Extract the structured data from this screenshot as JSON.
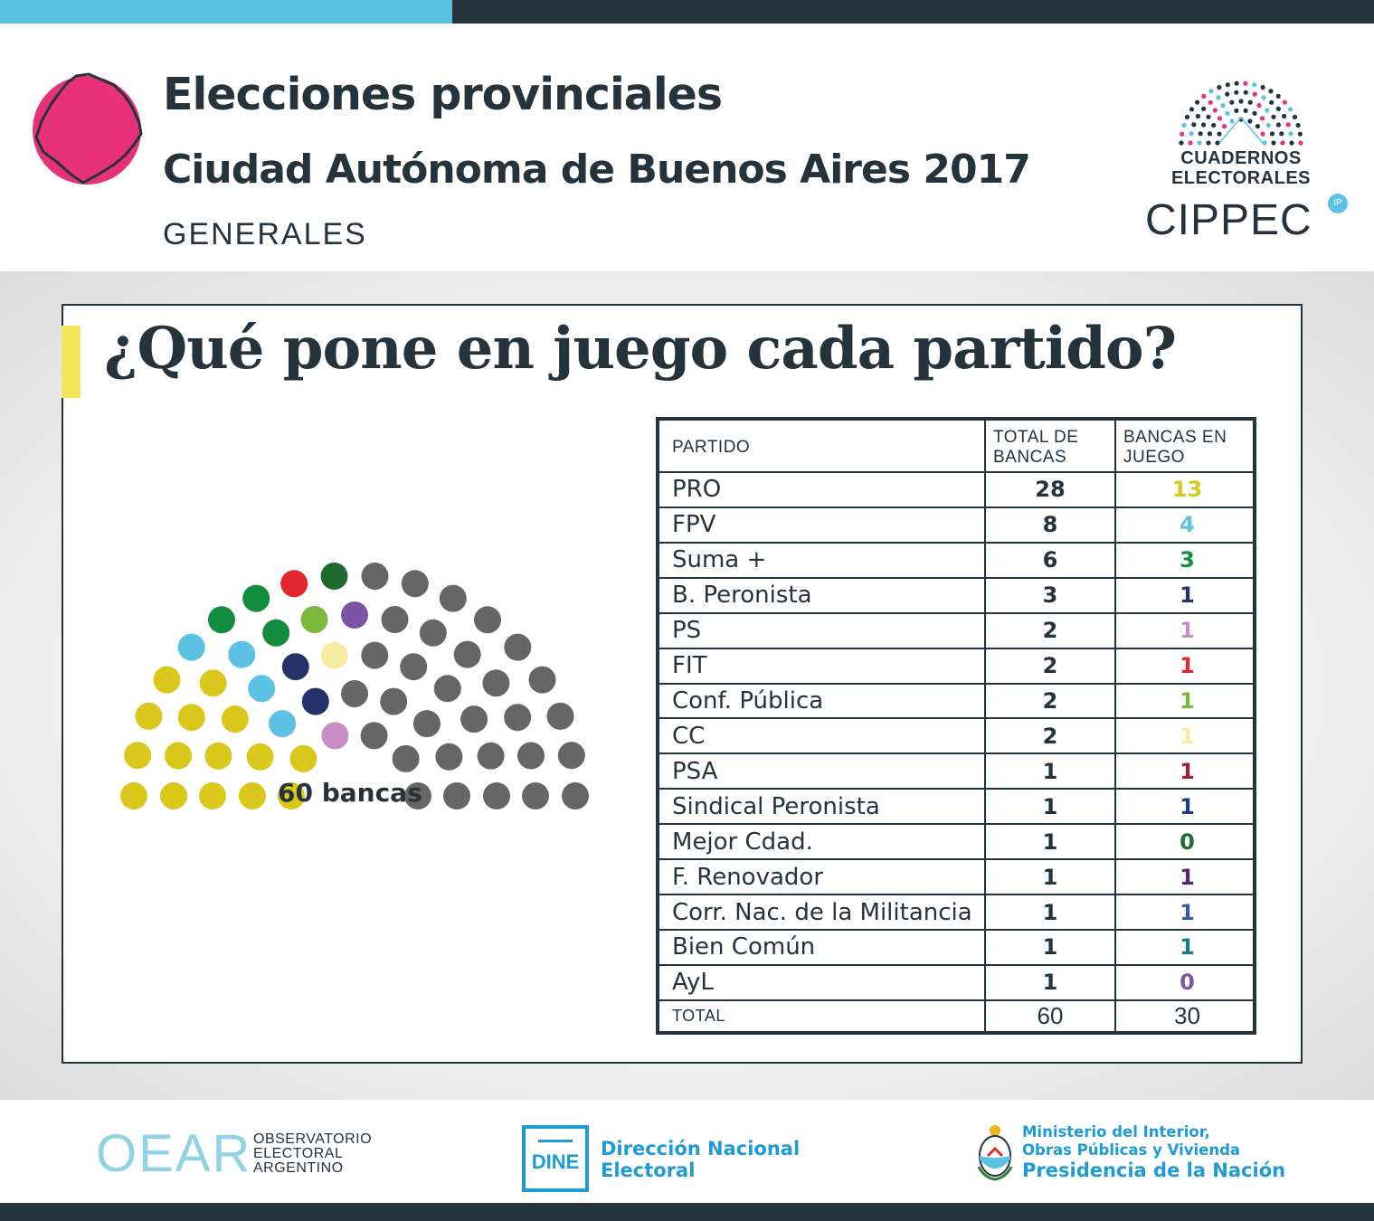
{
  "colors": {
    "accent_blue": "#5cc2e3",
    "dark": "#25333d",
    "magenta": "#e8317a",
    "highlight_yellow": "#f3e55a",
    "institution_blue": "#1e9bd7"
  },
  "header": {
    "title": "Elecciones provinciales",
    "region": "Ciudad Autónoma de Buenos Aires 2017",
    "subtitle": "GENERALES",
    "map_icon": "buenos-aires-city-map-icon"
  },
  "logo": {
    "line1": "CUADERNOS",
    "line2": "ELECTORALES",
    "name": "CIPPEC",
    "badge": "IP"
  },
  "main": {
    "question": "¿Qué pone en juego cada partido?",
    "bancas_label": "60 bancas"
  },
  "table": {
    "headers": {
      "partido": "PARTIDO",
      "total": "TOTAL DE BANCAS",
      "juego": "BANCAS EN JUEGO"
    },
    "total_label": "TOTAL",
    "total_bancas": "60",
    "total_juego": "30"
  },
  "chart_data": {
    "type": "table",
    "title": "¿Qué pone en juego cada partido?",
    "columns": [
      "PARTIDO",
      "TOTAL DE BANCAS",
      "BANCAS EN JUEGO"
    ],
    "total_seats": 60,
    "parties": [
      {
        "name": "PRO",
        "total": 28,
        "juego": 13,
        "color": "#d9c71c"
      },
      {
        "name": "FPV",
        "total": 8,
        "juego": 4,
        "color": "#5cc2e3"
      },
      {
        "name": "Suma +",
        "total": 6,
        "juego": 3,
        "color": "#128c3e"
      },
      {
        "name": "B. Peronista",
        "total": 3,
        "juego": 1,
        "color": "#26336b"
      },
      {
        "name": "PS",
        "total": 2,
        "juego": 1,
        "color": "#c98cc4"
      },
      {
        "name": "FIT",
        "total": 2,
        "juego": 1,
        "color": "#e3262c"
      },
      {
        "name": "Conf. Pública",
        "total": 2,
        "juego": 1,
        "color": "#7cb83b"
      },
      {
        "name": "CC",
        "total": 2,
        "juego": 1,
        "color": "#f5eca1"
      },
      {
        "name": "PSA",
        "total": 1,
        "juego": 1,
        "color": "#a61e36"
      },
      {
        "name": "Sindical Peronista",
        "total": 1,
        "juego": 1,
        "color": "#1b3c8c"
      },
      {
        "name": "Mejor Cdad.",
        "total": 1,
        "juego": 0,
        "color": "#1f6a2e"
      },
      {
        "name": "F. Renovador",
        "total": 1,
        "juego": 1,
        "color": "#5a2270"
      },
      {
        "name": "Corr. Nac. de la Militancia",
        "total": 1,
        "juego": 1,
        "color": "#3559a8"
      },
      {
        "name": "Bien Común",
        "total": 1,
        "juego": 1,
        "color": "#157c88"
      },
      {
        "name": "AyL",
        "total": 1,
        "juego": 0,
        "color": "#7e55a6"
      }
    ],
    "seat_at_stake_color": "#666666",
    "total_juego": 30
  },
  "footer": {
    "oear_mark": "OEAR",
    "oear_line1": "OBSERVATORIO",
    "oear_line2": "ELECTORAL",
    "oear_line3": "ARGENTINO",
    "dine_mark": "DINE",
    "dine_line1": "Dirección Nacional",
    "dine_line2": "Electoral",
    "ministry_line1": "Ministerio del Interior,",
    "ministry_line2": "Obras Públicas y Vivienda",
    "ministry_line3": "Presidencia de la Nación"
  }
}
